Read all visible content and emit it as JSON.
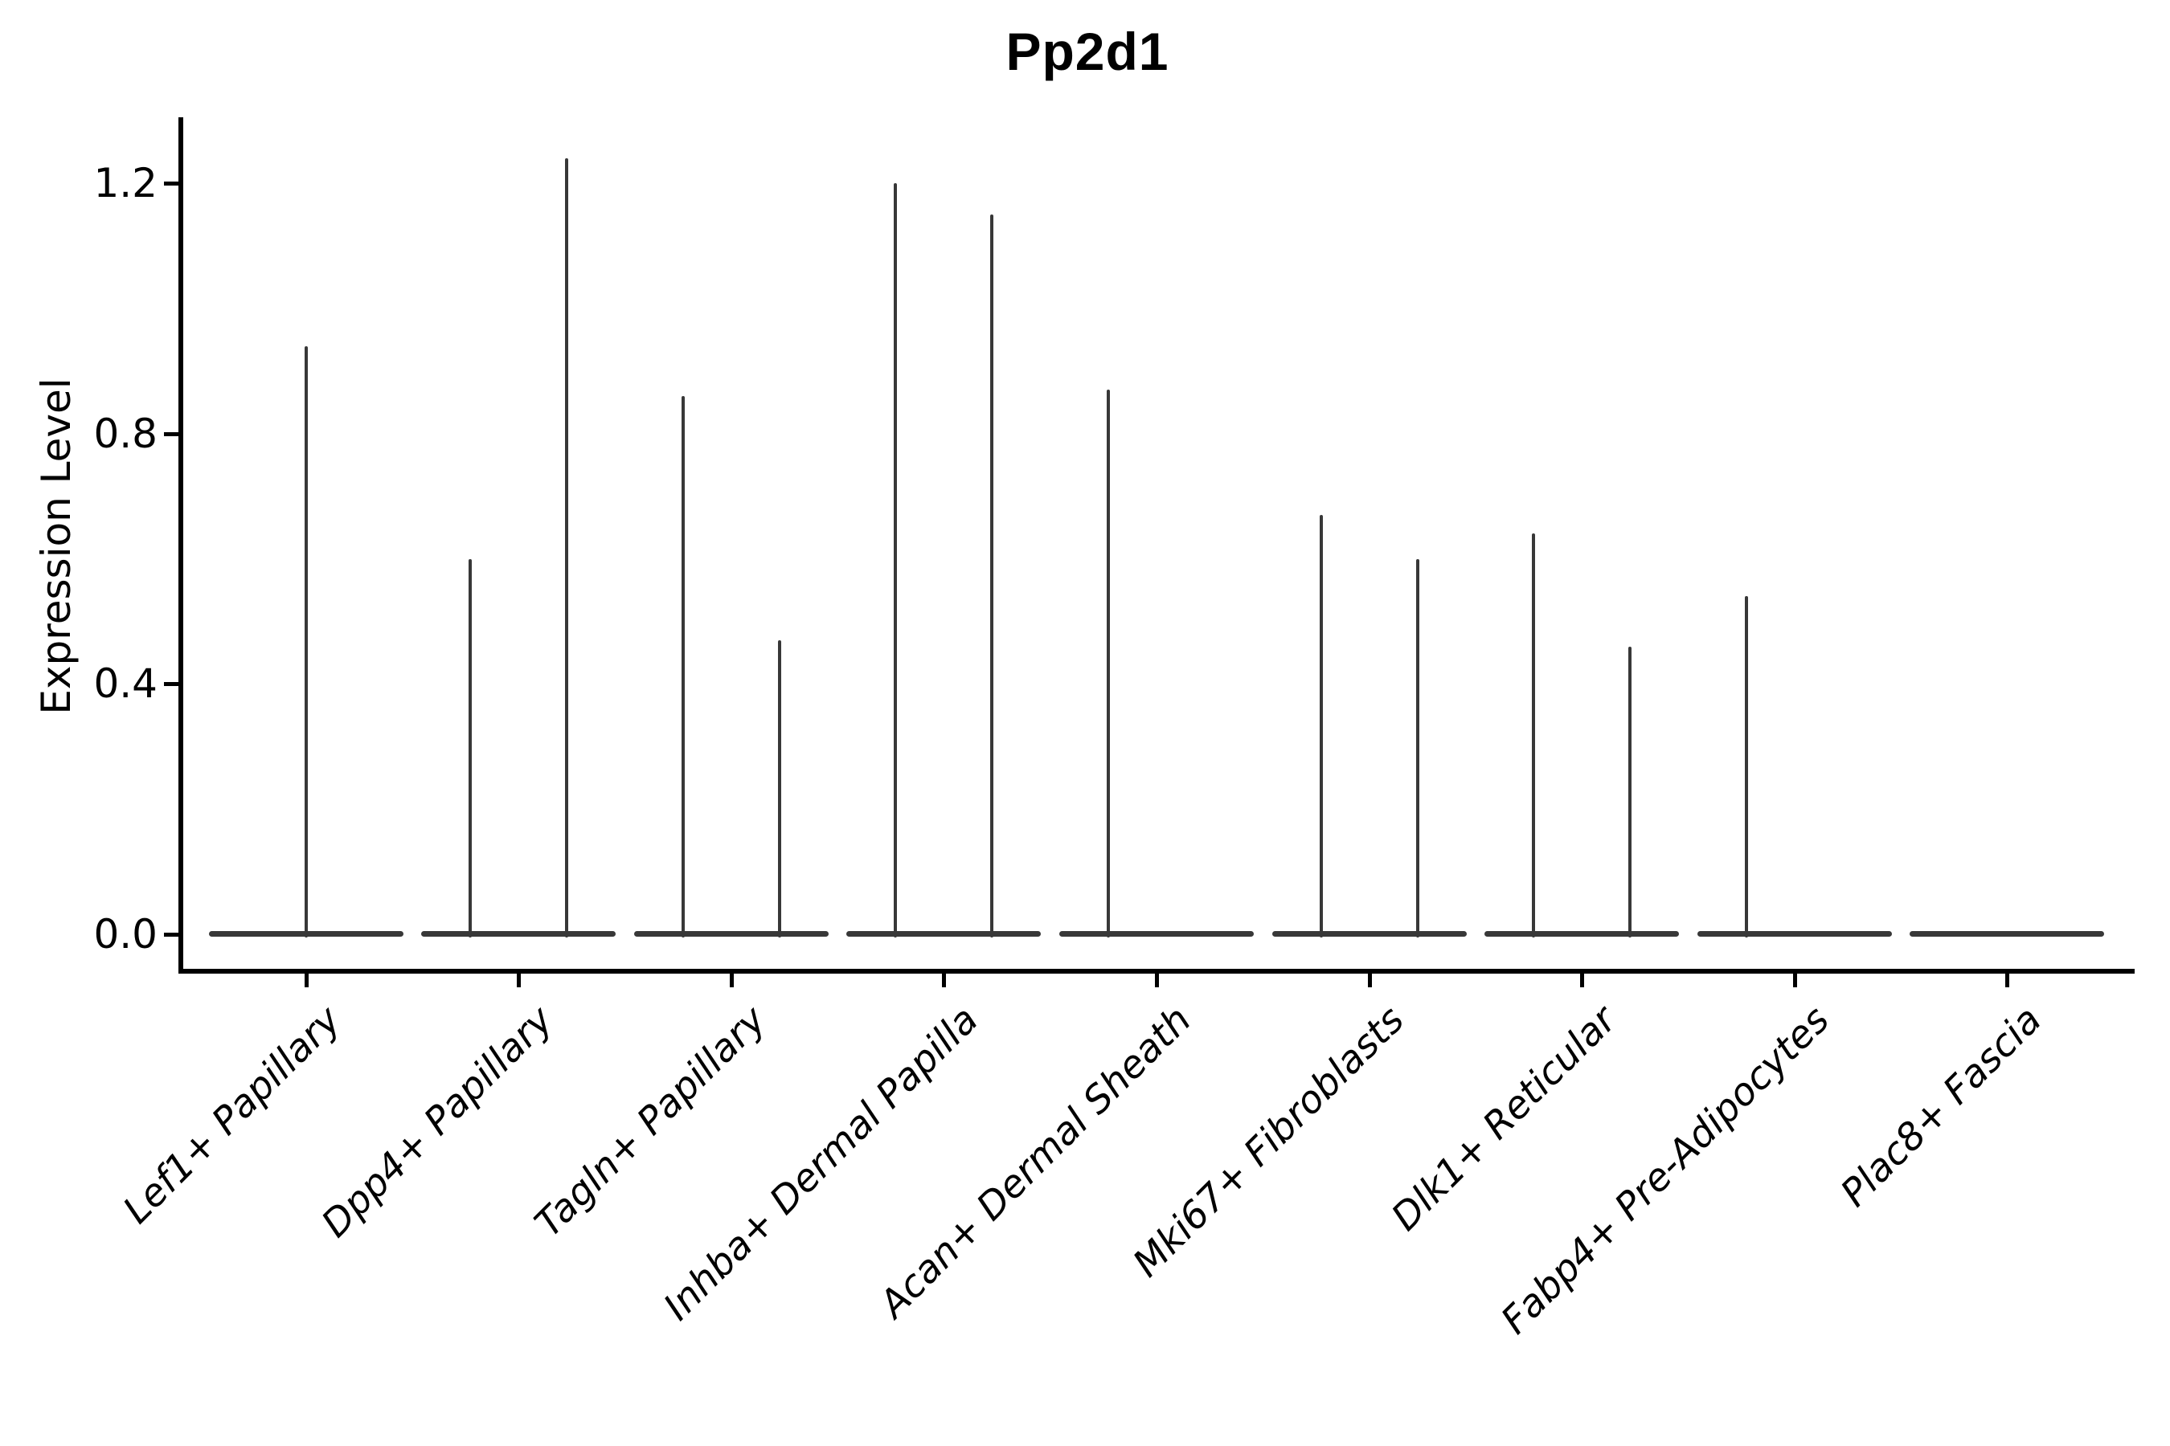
{
  "chart_data": {
    "type": "violin",
    "title": "Pp2d1",
    "ylabel": "Expression Level",
    "xlabel": "",
    "ylim": [
      -0.06,
      1.3
    ],
    "grid": false,
    "legend": false,
    "violin_color": "#383838",
    "axis_color": "#000000",
    "yticks": [
      {
        "value": 0.0,
        "label": "0.0"
      },
      {
        "value": 0.4,
        "label": "0.4"
      },
      {
        "value": 0.8,
        "label": "0.8"
      },
      {
        "value": 1.2,
        "label": "1.2"
      }
    ],
    "categories": [
      {
        "label": "Lef1+ Papillary",
        "spikes": [
          {
            "offset": 0,
            "max": 0.94
          }
        ]
      },
      {
        "label": "Dpp4+ Papillary",
        "spikes": [
          {
            "offset": -60,
            "max": 0.6
          },
          {
            "offset": 60,
            "max": 1.24
          }
        ]
      },
      {
        "label": "Tagln+ Papillary",
        "spikes": [
          {
            "offset": -60,
            "max": 0.86
          },
          {
            "offset": 60,
            "max": 0.47
          }
        ]
      },
      {
        "label": "Inhba+ Dermal Papilla",
        "spikes": [
          {
            "offset": -60,
            "max": 1.2
          },
          {
            "offset": 60,
            "max": 1.15
          }
        ]
      },
      {
        "label": "Acan+ Dermal Sheath",
        "spikes": [
          {
            "offset": -60,
            "max": 0.87
          }
        ]
      },
      {
        "label": "Mki67+ Fibroblasts",
        "spikes": [
          {
            "offset": -60,
            "max": 0.67
          },
          {
            "offset": 60,
            "max": 0.6
          }
        ]
      },
      {
        "label": "Dlk1+ Reticular",
        "spikes": [
          {
            "offset": -60,
            "max": 0.64
          },
          {
            "offset": 60,
            "max": 0.46
          }
        ]
      },
      {
        "label": "Fabp4+ Pre-Adipocytes",
        "spikes": [
          {
            "offset": -60,
            "max": 0.54
          }
        ]
      },
      {
        "label": "Plac8+ Fascia",
        "spikes": []
      }
    ]
  }
}
